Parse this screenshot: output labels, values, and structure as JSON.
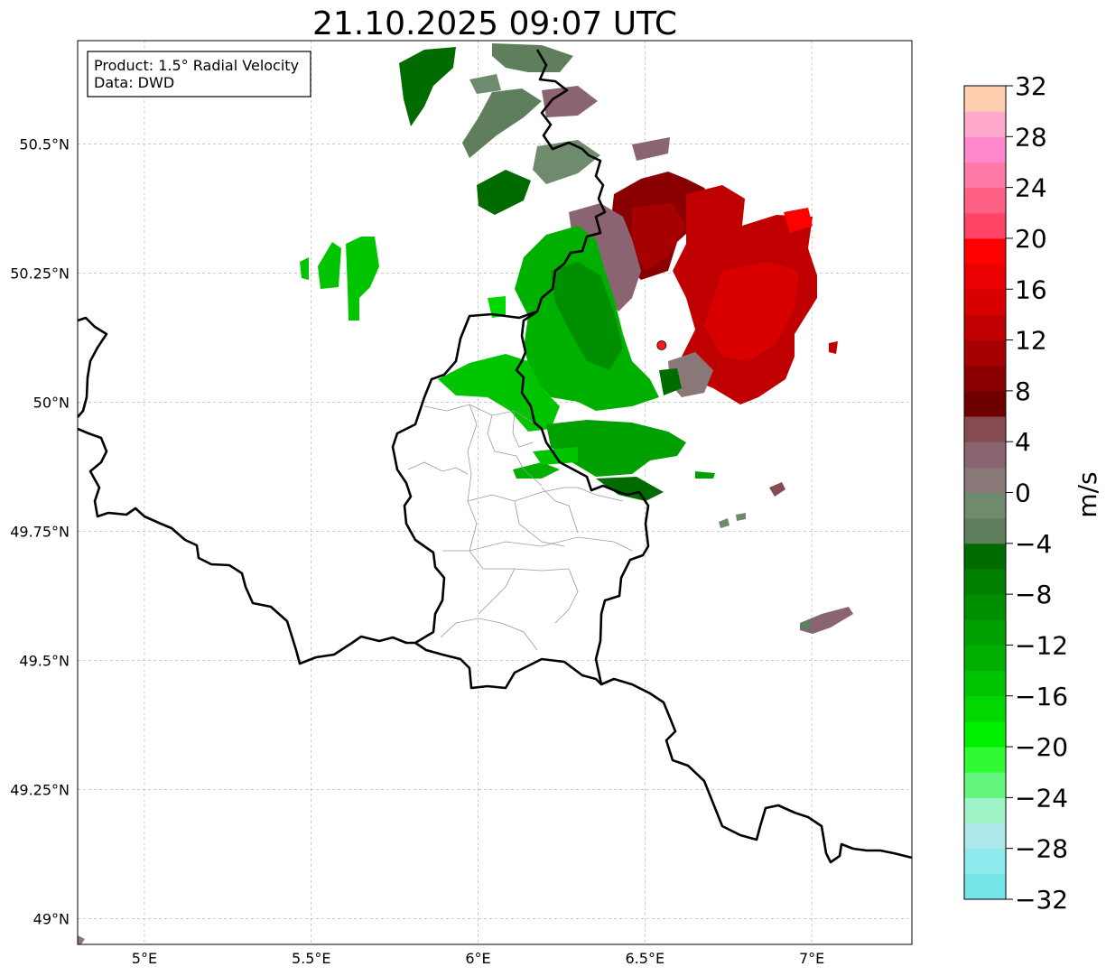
{
  "title": "21.10.2025 09:07 UTC",
  "info_box": {
    "product": "Product: 1.5° Radial Velocity",
    "data": "Data: DWD"
  },
  "map": {
    "lon_range": [
      4.8,
      7.3
    ],
    "lat_range": [
      48.95,
      50.7
    ],
    "x_ticks": [
      {
        "value": 5.0,
        "label": "5°E"
      },
      {
        "value": 5.5,
        "label": "5.5°E"
      },
      {
        "value": 6.0,
        "label": "6°E"
      },
      {
        "value": 6.5,
        "label": "6.5°E"
      },
      {
        "value": 7.0,
        "label": "7°E"
      }
    ],
    "y_ticks": [
      {
        "value": 49.0,
        "label": "49°N"
      },
      {
        "value": 49.25,
        "label": "49.25°N"
      },
      {
        "value": 49.5,
        "label": "49.5°N"
      },
      {
        "value": 49.75,
        "label": "49.75°N"
      },
      {
        "value": 50.0,
        "label": "50°N"
      },
      {
        "value": 50.25,
        "label": "50.25°N"
      },
      {
        "value": 50.5,
        "label": "50.5°N"
      }
    ],
    "radar_site": {
      "lon": 6.55,
      "lat": 50.11,
      "color": "#ff1a1a"
    },
    "colors": {
      "border": "#000000",
      "admin": "#999999",
      "grid": "#aaaaaa"
    }
  },
  "colorbar": {
    "label": "m/s",
    "min": -32,
    "max": 32,
    "ticks": [
      {
        "value": -32,
        "label": "−32"
      },
      {
        "value": -28,
        "label": "−28"
      },
      {
        "value": -24,
        "label": "−24"
      },
      {
        "value": -20,
        "label": "−20"
      },
      {
        "value": -16,
        "label": "−16"
      },
      {
        "value": -12,
        "label": "−12"
      },
      {
        "value": -8,
        "label": "−8"
      },
      {
        "value": -4,
        "label": "−4"
      },
      {
        "value": 0,
        "label": "0"
      },
      {
        "value": 4,
        "label": "4"
      },
      {
        "value": 8,
        "label": "8"
      },
      {
        "value": 12,
        "label": "12"
      },
      {
        "value": 16,
        "label": "16"
      },
      {
        "value": 20,
        "label": "20"
      },
      {
        "value": 24,
        "label": "24"
      },
      {
        "value": 28,
        "label": "28"
      },
      {
        "value": 32,
        "label": "32"
      }
    ],
    "colors": [
      "#74e4e8",
      "#8ce9ec",
      "#ade8ea",
      "#9ff4c8",
      "#64f57c",
      "#30fb32",
      "#00f000",
      "#00d800",
      "#00c400",
      "#00b000",
      "#00a000",
      "#008f00",
      "#007f00",
      "#006c00",
      "#5e7e5c",
      "#6e8b6e",
      "#8a7878",
      "#8a6470",
      "#864b50",
      "#6e0000",
      "#8a0000",
      "#a60000",
      "#c00000",
      "#d80000",
      "#ea0000",
      "#ff0000",
      "#ff4466",
      "#ff6085",
      "#ff7aa6",
      "#ff88cc",
      "#ffaacc",
      "#ffcfb0"
    ]
  }
}
